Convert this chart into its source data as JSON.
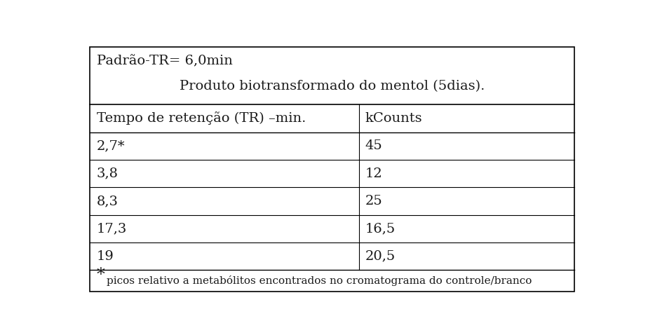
{
  "header_line1": "Padrão-TR= 6,0min",
  "header_line2": "Produto biotransformado do mentol (5dias).",
  "col1_header": "Tempo de retenção (TR) –min.",
  "col2_header": "kCounts",
  "rows": [
    [
      "2,7*",
      "45"
    ],
    [
      "3,8",
      "12"
    ],
    [
      "8,3",
      "25"
    ],
    [
      "17,3",
      "16,5"
    ],
    [
      "19",
      "20,5"
    ]
  ],
  "footnote_star": "*",
  "footnote_text": "picos relativo a metabólitos encontrados no cromatograma do controle/branco",
  "bg_color": "#ffffff",
  "border_color": "#000000",
  "text_color": "#1a1a1a",
  "col_split": 0.555,
  "font_size": 14,
  "header_font_size": 14,
  "footnote_font_size": 11,
  "footnote_star_size": 17
}
